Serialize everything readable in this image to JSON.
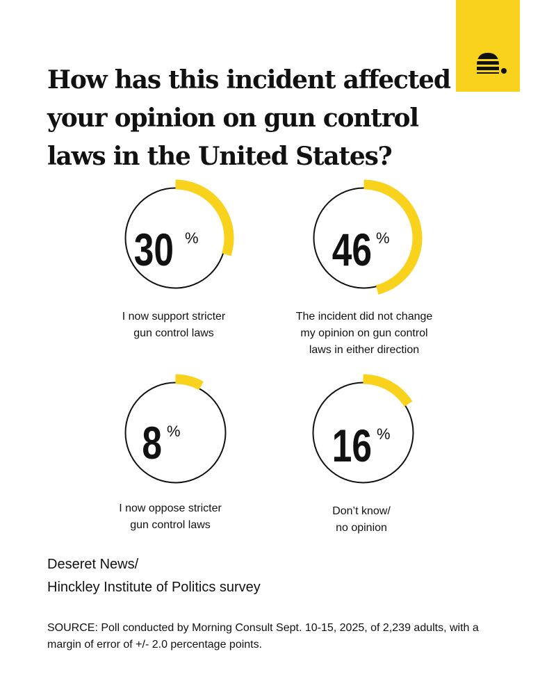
{
  "title": "How has this incident affected your opinion on gun control laws in the United States?",
  "colors": {
    "accent": "#f8d21c",
    "ink": "#111111",
    "background": "#ffffff"
  },
  "logo": {
    "icon": "beehive-logo-icon"
  },
  "chart_data": {
    "type": "pie",
    "unit": "%",
    "categories": [
      "I now support stricter gun control laws",
      "The incident did not change my opinion on gun control laws in either direction",
      "I now oppose stricter gun control laws",
      "Don't know/ no opinion"
    ],
    "values": [
      30,
      46,
      8,
      16
    ],
    "display_values": [
      "30",
      "46",
      "8",
      "16"
    ],
    "labels": [
      "I now support stricter\ngun control laws",
      "The incident did not change\nmy opinion on gun control\nlaws in either direction",
      "I now oppose stricter\ngun control laws",
      "Don’t know/\nno opinion"
    ]
  },
  "credit": {
    "line1": "Deseret News/",
    "line2": "Hinckley Institute of Politics survey"
  },
  "source": "SOURCE: Poll conducted by Morning Consult Sept. 10-15, 2025, of 2,239 adults, with a margin of error of +/- 2.0 percentage points."
}
